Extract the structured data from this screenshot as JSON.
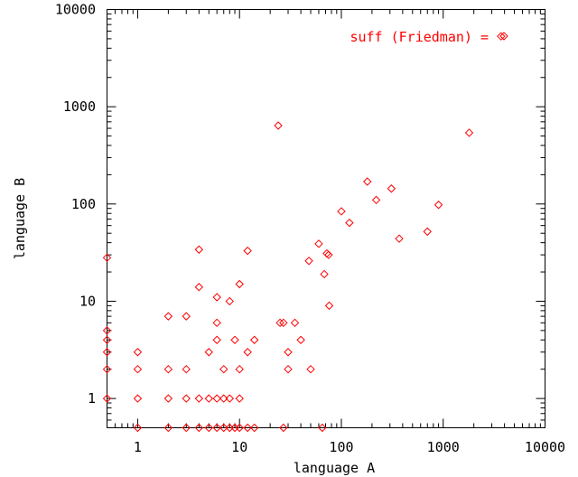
{
  "chart_data": {
    "type": "scatter",
    "title": "",
    "xlabel": "language A",
    "ylabel": "language B",
    "x_scale": "log",
    "y_scale": "log",
    "xlim": [
      0.5,
      10000
    ],
    "ylim": [
      0.5,
      10000
    ],
    "x_ticks": [
      1,
      10,
      100,
      1000,
      10000
    ],
    "y_ticks": [
      1,
      10,
      100,
      1000,
      10000
    ],
    "x_tick_labels": [
      "1",
      "10",
      "100",
      "1000",
      "10000"
    ],
    "y_tick_labels": [
      "1",
      "10",
      "100",
      "1000",
      "10000"
    ],
    "grid": false,
    "legend_position": "top-right",
    "marker": "diamond",
    "series": [
      {
        "name": "suff (Friedman) =",
        "color": "#ff0000",
        "points": [
          [
            0.5,
            28
          ],
          [
            0.5,
            5
          ],
          [
            0.5,
            4
          ],
          [
            0.5,
            3
          ],
          [
            0.5,
            2
          ],
          [
            0.5,
            1
          ],
          [
            1,
            3
          ],
          [
            1,
            2
          ],
          [
            1,
            1
          ],
          [
            1,
            0.5
          ],
          [
            2,
            7
          ],
          [
            2,
            2
          ],
          [
            2,
            1
          ],
          [
            2,
            0.5
          ],
          [
            3,
            7
          ],
          [
            3,
            2
          ],
          [
            3,
            1
          ],
          [
            3,
            0.5
          ],
          [
            4,
            34
          ],
          [
            4,
            14
          ],
          [
            4,
            1
          ],
          [
            4,
            0.5
          ],
          [
            5,
            3
          ],
          [
            5,
            1
          ],
          [
            5,
            0.5
          ],
          [
            6,
            11
          ],
          [
            6,
            6
          ],
          [
            6,
            4
          ],
          [
            6,
            1
          ],
          [
            6,
            0.5
          ],
          [
            7,
            2
          ],
          [
            7,
            1
          ],
          [
            7,
            0.5
          ],
          [
            8,
            10
          ],
          [
            8,
            1
          ],
          [
            8,
            0.5
          ],
          [
            9,
            4
          ],
          [
            9,
            0.5
          ],
          [
            10,
            15
          ],
          [
            10,
            2
          ],
          [
            10,
            1
          ],
          [
            10,
            0.5
          ],
          [
            12,
            33
          ],
          [
            12,
            3
          ],
          [
            12,
            0.5
          ],
          [
            14,
            4
          ],
          [
            14,
            0.5
          ],
          [
            24,
            640
          ],
          [
            25,
            6
          ],
          [
            27,
            6
          ],
          [
            27,
            0.5
          ],
          [
            30,
            3
          ],
          [
            30,
            2
          ],
          [
            35,
            6
          ],
          [
            40,
            4
          ],
          [
            48,
            26
          ],
          [
            50,
            2
          ],
          [
            60,
            39
          ],
          [
            65,
            0.5
          ],
          [
            68,
            19
          ],
          [
            72,
            31
          ],
          [
            75,
            30
          ],
          [
            76,
            9
          ],
          [
            100,
            84
          ],
          [
            120,
            64
          ],
          [
            180,
            170
          ],
          [
            220,
            110
          ],
          [
            310,
            144
          ],
          [
            370,
            44
          ],
          [
            700,
            52
          ],
          [
            900,
            98
          ],
          [
            1800,
            540
          ],
          [
            3700,
            5300
          ]
        ]
      }
    ]
  }
}
